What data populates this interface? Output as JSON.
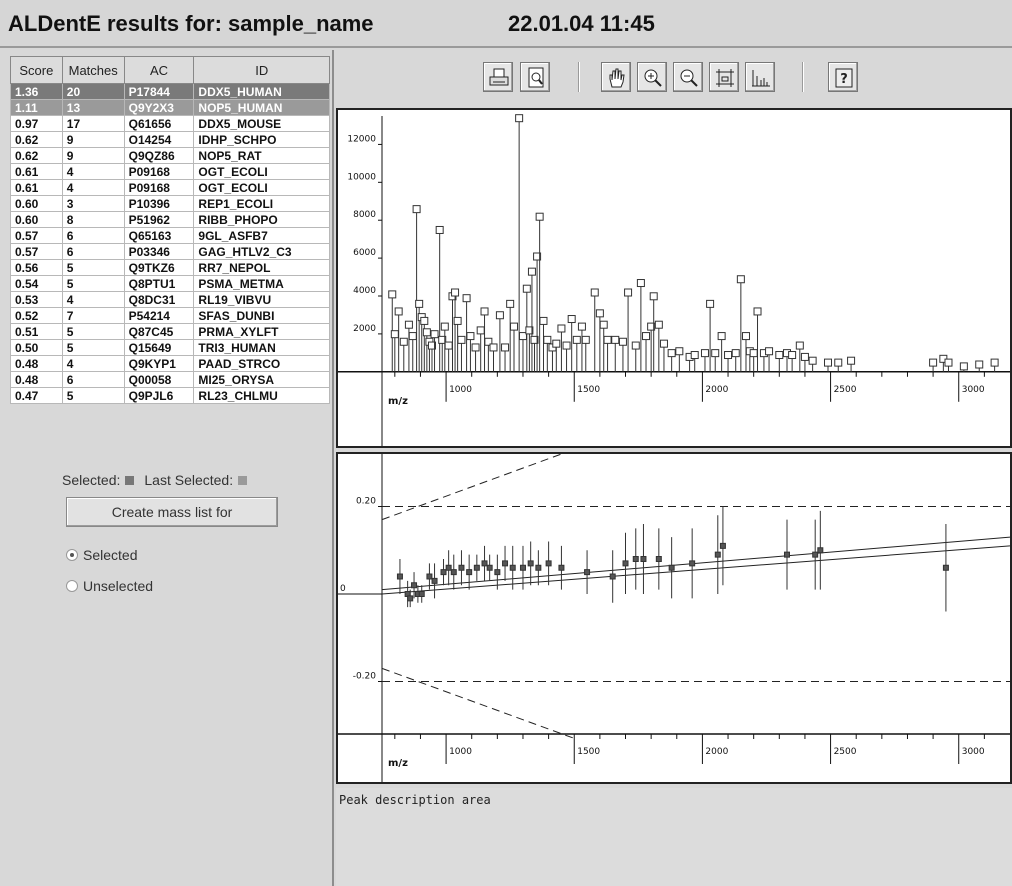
{
  "window": {
    "title": "ALDentE results for: sample_name",
    "timestamp": "22.01.04 11:45"
  },
  "results": {
    "columns": [
      "Score",
      "Matches",
      "AC",
      "ID"
    ],
    "rows": [
      [
        "1.36",
        "20",
        "P17844",
        "DDX5_HUMAN"
      ],
      [
        "1.11",
        "13",
        "Q9Y2X3",
        "NOP5_HUMAN"
      ],
      [
        "0.97",
        "17",
        "Q61656",
        "DDX5_MOUSE"
      ],
      [
        "0.62",
        "9",
        "O14254",
        "IDHP_SCHPO"
      ],
      [
        "0.62",
        "9",
        "Q9QZ86",
        "NOP5_RAT"
      ],
      [
        "0.61",
        "4",
        "P09168",
        "OGT_ECOLI"
      ],
      [
        "0.61",
        "4",
        "P09168",
        "OGT_ECOLI"
      ],
      [
        "0.60",
        "3",
        "P10396",
        "REP1_ECOLI"
      ],
      [
        "0.60",
        "8",
        "P51962",
        "RIBB_PHOPO"
      ],
      [
        "0.57",
        "6",
        "Q65163",
        "9GL_ASFB7"
      ],
      [
        "0.57",
        "6",
        "P03346",
        "GAG_HTLV2_C3"
      ],
      [
        "0.56",
        "5",
        "Q9TKZ6",
        "RR7_NEPOL"
      ],
      [
        "0.54",
        "5",
        "Q8PTU1",
        "PSMA_METMA"
      ],
      [
        "0.53",
        "4",
        "Q8DC31",
        "RL19_VIBVU"
      ],
      [
        "0.52",
        "7",
        "P54214",
        "SFAS_DUNBI"
      ],
      [
        "0.51",
        "5",
        "Q87C45",
        "PRMA_XYLFT"
      ],
      [
        "0.50",
        "5",
        "Q15649",
        "TRI3_HUMAN"
      ],
      [
        "0.48",
        "4",
        "Q9KYP1",
        "PAAD_STRCO"
      ],
      [
        "0.48",
        "6",
        "Q00058",
        "MI25_ORYSA"
      ],
      [
        "0.47",
        "5",
        "Q9PJL6",
        "RL23_CHLMU"
      ]
    ],
    "selected_row": 0,
    "last_selected_row": 1
  },
  "legend": {
    "selected_label": "Selected:",
    "last_selected_label": "Last Selected:"
  },
  "mass_list": {
    "button_label": "Create mass list for",
    "options": [
      "Selected",
      "Unselected"
    ],
    "checked": "Selected"
  },
  "toolbar": {
    "icons": [
      "print-icon",
      "print-preview-icon",
      "pan-hand-icon",
      "zoom-in-icon",
      "zoom-out-icon",
      "fit-frame-icon",
      "histogram-icon",
      "help-icon"
    ],
    "button_names": [
      "print-button",
      "print-preview-button",
      "pan-button",
      "zoom-in-button",
      "zoom-out-button",
      "fit-button",
      "histogram-button",
      "help-button"
    ]
  },
  "peak_description": {
    "placeholder": "Peak description area"
  },
  "colors": {
    "accent": "#777777",
    "selected_row": "#7a7a7a",
    "last_selected_row": "#9a9a9a"
  },
  "chart_data": [
    {
      "type": "bar",
      "xlabel": "m/z",
      "ylabel": "",
      "xlim": [
        750,
        3200
      ],
      "ylim": [
        -1700,
        13500
      ],
      "xticks": [
        1000,
        1500,
        2000,
        2500,
        3000
      ],
      "yticks": [
        2000,
        4000,
        6000,
        8000,
        10000,
        12000
      ],
      "marker": "open-square",
      "peaks": [
        [
          790,
          3900
        ],
        [
          815,
          3000
        ],
        [
          800,
          1800
        ],
        [
          835,
          1400
        ],
        [
          855,
          2300
        ],
        [
          870,
          1700
        ],
        [
          885,
          8400
        ],
        [
          895,
          3400
        ],
        [
          905,
          2700
        ],
        [
          915,
          2500
        ],
        [
          925,
          1900
        ],
        [
          935,
          1400
        ],
        [
          945,
          1200
        ],
        [
          955,
          1800
        ],
        [
          975,
          7300
        ],
        [
          985,
          1500
        ],
        [
          995,
          2200
        ],
        [
          1010,
          1200
        ],
        [
          1025,
          3800
        ],
        [
          1035,
          4000
        ],
        [
          1045,
          2500
        ],
        [
          1060,
          1500
        ],
        [
          1080,
          3700
        ],
        [
          1095,
          1700
        ],
        [
          1115,
          1100
        ],
        [
          1135,
          2000
        ],
        [
          1150,
          3000
        ],
        [
          1165,
          1400
        ],
        [
          1185,
          1100
        ],
        [
          1210,
          2800
        ],
        [
          1230,
          1100
        ],
        [
          1250,
          3400
        ],
        [
          1265,
          2200
        ],
        [
          1285,
          13200
        ],
        [
          1300,
          1700
        ],
        [
          1315,
          4200
        ],
        [
          1325,
          2000
        ],
        [
          1335,
          5100
        ],
        [
          1345,
          1500
        ],
        [
          1355,
          5900
        ],
        [
          1365,
          8000
        ],
        [
          1380,
          2500
        ],
        [
          1395,
          1500
        ],
        [
          1415,
          1100
        ],
        [
          1430,
          1300
        ],
        [
          1450,
          2100
        ],
        [
          1470,
          1200
        ],
        [
          1490,
          2600
        ],
        [
          1510,
          1500
        ],
        [
          1530,
          2200
        ],
        [
          1545,
          1500
        ],
        [
          1580,
          4000
        ],
        [
          1600,
          2900
        ],
        [
          1615,
          2300
        ],
        [
          1630,
          1500
        ],
        [
          1660,
          1500
        ],
        [
          1690,
          1400
        ],
        [
          1710,
          4000
        ],
        [
          1740,
          1200
        ],
        [
          1760,
          4500
        ],
        [
          1780,
          1700
        ],
        [
          1800,
          2200
        ],
        [
          1810,
          3800
        ],
        [
          1830,
          2300
        ],
        [
          1850,
          1300
        ],
        [
          1880,
          800
        ],
        [
          1910,
          900
        ],
        [
          1950,
          600
        ],
        [
          1970,
          700
        ],
        [
          2010,
          800
        ],
        [
          2030,
          3400
        ],
        [
          2050,
          800
        ],
        [
          2075,
          1700
        ],
        [
          2100,
          700
        ],
        [
          2130,
          800
        ],
        [
          2150,
          4700
        ],
        [
          2170,
          1700
        ],
        [
          2185,
          900
        ],
        [
          2200,
          800
        ],
        [
          2215,
          3000
        ],
        [
          2240,
          800
        ],
        [
          2260,
          900
        ],
        [
          2300,
          700
        ],
        [
          2330,
          800
        ],
        [
          2350,
          700
        ],
        [
          2380,
          1200
        ],
        [
          2400,
          600
        ],
        [
          2430,
          400
        ],
        [
          2490,
          300
        ],
        [
          2530,
          300
        ],
        [
          2580,
          400
        ],
        [
          2900,
          300
        ],
        [
          2940,
          500
        ],
        [
          2960,
          300
        ],
        [
          3020,
          100
        ],
        [
          3080,
          200
        ],
        [
          3140,
          300
        ]
      ]
    },
    {
      "type": "scatter",
      "xlabel": "m/z",
      "ylabel": "",
      "xlim": [
        750,
        3200
      ],
      "ylim": [
        -0.32,
        0.32
      ],
      "xticks": [
        1000,
        1500,
        2000,
        2500,
        3000
      ],
      "yticks": [
        -0.2,
        0,
        0.2
      ],
      "ytick_labels": [
        "-0.20",
        "0",
        "0.20"
      ],
      "points": [
        [
          820,
          0.04,
          0.04
        ],
        [
          850,
          0.0,
          0.03
        ],
        [
          860,
          -0.01,
          0.02
        ],
        [
          875,
          0.02,
          0.03
        ],
        [
          890,
          0.0,
          0.02
        ],
        [
          905,
          0.0,
          0.02
        ],
        [
          935,
          0.04,
          0.03
        ],
        [
          955,
          0.03,
          0.04
        ],
        [
          990,
          0.05,
          0.03
        ],
        [
          1010,
          0.06,
          0.04
        ],
        [
          1030,
          0.05,
          0.04
        ],
        [
          1060,
          0.06,
          0.04
        ],
        [
          1090,
          0.05,
          0.04
        ],
        [
          1120,
          0.06,
          0.03
        ],
        [
          1150,
          0.07,
          0.04
        ],
        [
          1170,
          0.06,
          0.03
        ],
        [
          1200,
          0.05,
          0.04
        ],
        [
          1230,
          0.07,
          0.04
        ],
        [
          1260,
          0.06,
          0.05
        ],
        [
          1300,
          0.06,
          0.05
        ],
        [
          1330,
          0.07,
          0.05
        ],
        [
          1360,
          0.06,
          0.04
        ],
        [
          1400,
          0.07,
          0.05
        ],
        [
          1450,
          0.06,
          0.05
        ],
        [
          1550,
          0.05,
          0.05
        ],
        [
          1650,
          0.04,
          0.06
        ],
        [
          1700,
          0.07,
          0.07
        ],
        [
          1740,
          0.08,
          0.07
        ],
        [
          1770,
          0.08,
          0.08
        ],
        [
          1830,
          0.08,
          0.07
        ],
        [
          1880,
          0.06,
          0.07
        ],
        [
          1960,
          0.07,
          0.08
        ],
        [
          2060,
          0.09,
          0.09
        ],
        [
          2080,
          0.11,
          0.09
        ],
        [
          2330,
          0.09,
          0.08
        ],
        [
          2440,
          0.09,
          0.08
        ],
        [
          2460,
          0.1,
          0.09
        ],
        [
          2950,
          0.06,
          0.1
        ]
      ],
      "fit_lines": [
        [
          [
            750,
            0.01
          ],
          [
            3200,
            0.13
          ]
        ],
        [
          [
            750,
            0.0
          ],
          [
            3200,
            0.11
          ]
        ]
      ],
      "limit_lines": [
        0.2,
        -0.2
      ],
      "diagonal_lines": [
        [
          [
            750,
            0.17
          ],
          [
            1450,
            0.32
          ]
        ],
        [
          [
            750,
            -0.17
          ],
          [
            1500,
            -0.33
          ]
        ]
      ]
    }
  ]
}
